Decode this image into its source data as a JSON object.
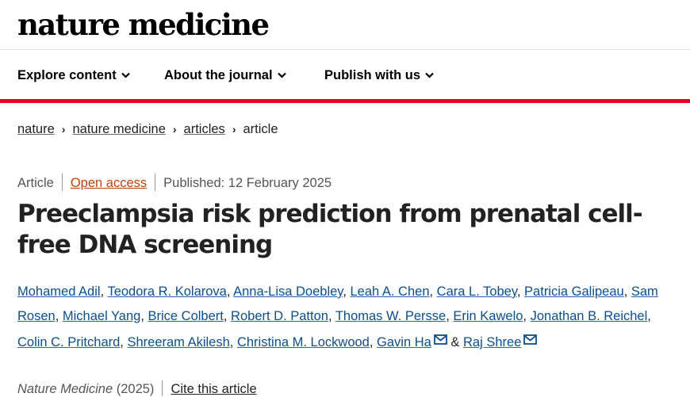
{
  "header": {
    "logo": "nature medicine"
  },
  "nav": {
    "items": [
      {
        "label": "Explore content"
      },
      {
        "label": "About the journal"
      },
      {
        "label": "Publish with us"
      }
    ]
  },
  "breadcrumb": {
    "items": [
      {
        "label": "nature"
      },
      {
        "label": "nature medicine"
      },
      {
        "label": "articles"
      },
      {
        "label": "article"
      }
    ]
  },
  "meta": {
    "type": "Article",
    "access": "Open access",
    "published": "Published: 12 February 2025"
  },
  "article": {
    "title": "Preeclampsia risk prediction from prenatal cell-free DNA screening",
    "authors": [
      "Mohamed Adil",
      "Teodora R. Kolarova",
      "Anna-Lisa Doebley",
      "Leah A. Chen",
      "Cara L. Tobey",
      "Patricia Galipeau",
      "Sam Rosen",
      "Michael Yang",
      "Brice Colbert",
      "Robert D. Patton",
      "Thomas W. Persse",
      "Erin Kawelo",
      "Jonathan B. Reichel",
      "Colin C. Pritchard",
      "Shreeram Akilesh",
      "Christina M. Lockwood",
      "Gavin Ha",
      "Raj Shree"
    ],
    "ampersand": "&",
    "journal": "Nature Medicine",
    "year": "(2025)",
    "cite": "Cite this article"
  },
  "colors": {
    "accent_red": "#e8001c",
    "link_blue": "#0b4f8a",
    "open_access": "#c4410b"
  },
  "icons": {
    "nav_chevron": "chevron-down-icon",
    "crumb_separator": "chevron-right-icon",
    "corresponding": "mail-icon"
  }
}
